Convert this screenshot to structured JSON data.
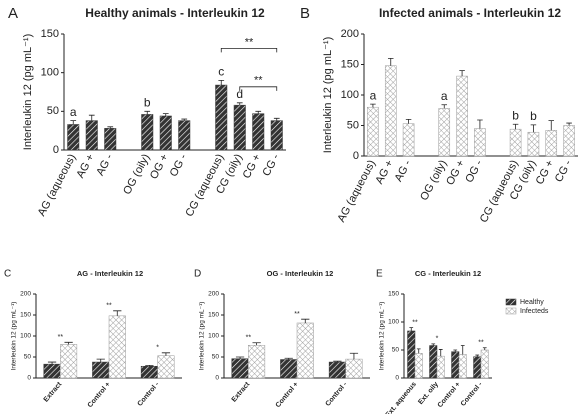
{
  "chart_data": [
    {
      "type": "bar",
      "panel_label": "A",
      "title": "Healthy animals - Interleukin 12",
      "ylabel": "Interleukin 12 (pg mL⁻¹)",
      "ylim": [
        0,
        150
      ],
      "yticks": [
        0,
        50,
        100,
        150
      ],
      "categories": [
        "AG (aqueous)",
        "AG +",
        "AG -",
        null,
        "OG (oily)",
        "OG +",
        "OG -",
        null,
        "CG (aqueous)",
        "CG (oily)",
        "CG +",
        "CG -"
      ],
      "letters": [
        "a",
        null,
        null,
        null,
        "b",
        null,
        null,
        null,
        "c",
        "d",
        null,
        null
      ],
      "brackets": [
        {
          "text": "**",
          "from": "CG (aqueous)",
          "to": "CG -"
        },
        {
          "text": "**",
          "from": "CG (oily)",
          "to": "CG -"
        }
      ],
      "series": [
        {
          "color": "#333333",
          "pattern": "diagonal",
          "values": [
            33,
            38,
            28,
            null,
            46,
            44,
            38,
            null,
            84,
            58,
            47,
            38
          ],
          "errors": [
            5,
            7,
            2,
            null,
            4,
            3,
            2,
            null,
            6,
            3,
            3,
            3
          ]
        }
      ]
    },
    {
      "type": "bar",
      "panel_label": "B",
      "title": "Infected animals - Interleukin 12",
      "ylabel": "Interleukin 12 (pg mL⁻¹)",
      "ylim": [
        0,
        200
      ],
      "yticks": [
        0,
        50,
        100,
        150,
        200
      ],
      "categories": [
        "AG (aqueous)",
        "AG +",
        "AG -",
        null,
        "OG (oily)",
        "OG +",
        "OG -",
        null,
        "CG (aqueous)",
        "CG (oily)",
        "CG +",
        "CG -"
      ],
      "letters": [
        "a",
        null,
        null,
        null,
        "a",
        null,
        null,
        null,
        "b",
        "b",
        null,
        null
      ],
      "series": [
        {
          "color": "#999999",
          "pattern": "crosshatch",
          "values": [
            80,
            148,
            53,
            null,
            78,
            131,
            45,
            null,
            44,
            39,
            42,
            50
          ],
          "errors": [
            5,
            12,
            7,
            null,
            6,
            9,
            14,
            null,
            8,
            12,
            16,
            4
          ]
        }
      ]
    },
    {
      "type": "bar",
      "panel_label": "C",
      "title": "AG - Interleukin 12",
      "ylabel": "Interleukin 12 (pg mL⁻¹)",
      "ylim": [
        0,
        200
      ],
      "yticks": [
        0,
        50,
        100,
        150,
        200
      ],
      "categories": [
        "Extract",
        "Control +",
        "Control -"
      ],
      "stars": [
        "**",
        "**",
        "*"
      ],
      "series": [
        {
          "name": "Healthy",
          "color": "#333333",
          "pattern": "diagonal",
          "values": [
            33,
            38,
            28
          ],
          "errors": [
            5,
            7,
            2
          ]
        },
        {
          "name": "Infecteds",
          "color": "#999999",
          "pattern": "crosshatch",
          "values": [
            80,
            148,
            53
          ],
          "errors": [
            5,
            12,
            7
          ]
        }
      ]
    },
    {
      "type": "bar",
      "panel_label": "D",
      "title": "OG - Interleukin 12",
      "ylabel": "Interleukin 12 (pg mL⁻¹)",
      "ylim": [
        0,
        200
      ],
      "yticks": [
        0,
        50,
        100,
        150,
        200
      ],
      "categories": [
        "Extract",
        "Control +",
        "Control -"
      ],
      "stars": [
        "**",
        "**",
        null
      ],
      "series": [
        {
          "name": "Healthy",
          "color": "#333333",
          "pattern": "diagonal",
          "values": [
            46,
            44,
            38
          ],
          "errors": [
            4,
            3,
            2
          ]
        },
        {
          "name": "Infecteds",
          "color": "#999999",
          "pattern": "crosshatch",
          "values": [
            78,
            131,
            45
          ],
          "errors": [
            6,
            9,
            14
          ]
        }
      ]
    },
    {
      "type": "bar",
      "panel_label": "E",
      "title": "CG - Interleukin 12",
      "ylabel": "Interleukin 12 (pg mL⁻¹)",
      "ylim": [
        0,
        150
      ],
      "yticks": [
        0,
        50,
        100,
        150
      ],
      "categories": [
        "Ext. aqueous",
        "Ext. oily",
        "Control +",
        "Control -"
      ],
      "stars": [
        "**",
        "*",
        null,
        "**"
      ],
      "legend": true,
      "series": [
        {
          "name": "Healthy",
          "color": "#333333",
          "pattern": "diagonal",
          "values": [
            84,
            58,
            47,
            38
          ],
          "errors": [
            6,
            3,
            3,
            3
          ]
        },
        {
          "name": "Infecteds",
          "color": "#999999",
          "pattern": "crosshatch",
          "values": [
            44,
            39,
            42,
            50
          ],
          "errors": [
            8,
            12,
            16,
            4
          ]
        }
      ]
    }
  ]
}
